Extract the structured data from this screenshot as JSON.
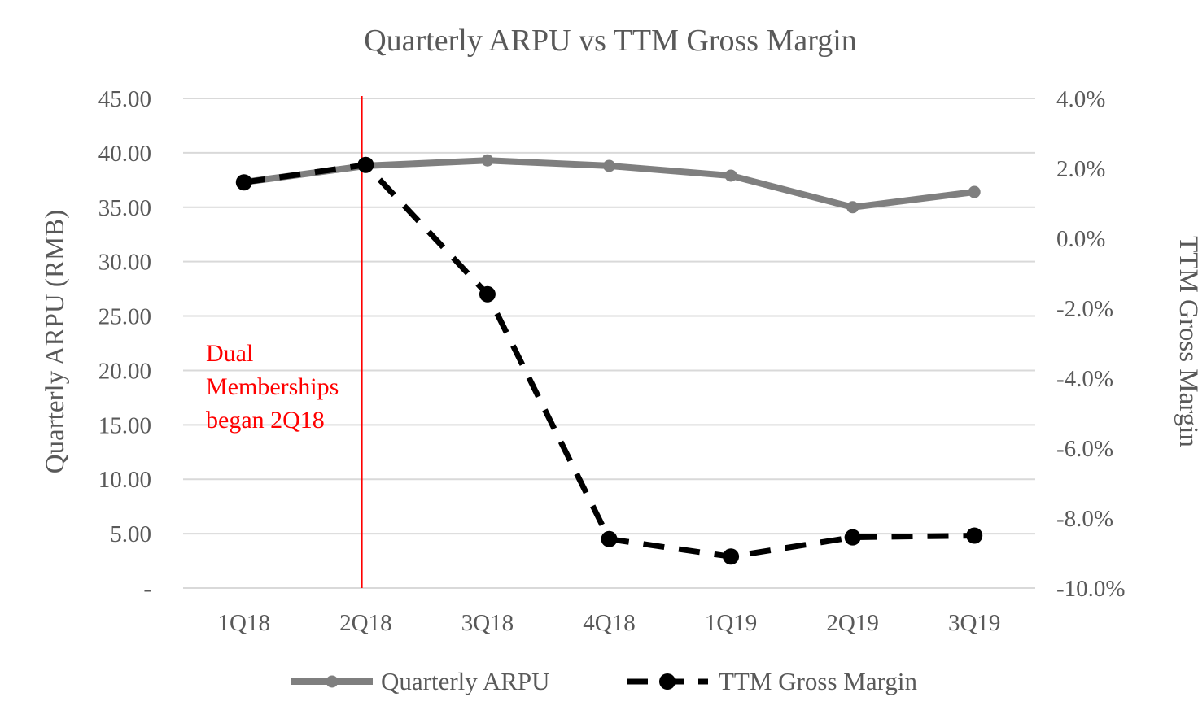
{
  "chart_data": {
    "type": "line",
    "title": "Quarterly ARPU vs TTM Gross Margin",
    "categories": [
      "1Q18",
      "2Q18",
      "3Q18",
      "4Q18",
      "1Q19",
      "2Q19",
      "3Q19"
    ],
    "y_left": {
      "label": "Quarterly ARPU (RMB)",
      "range": [
        0,
        45
      ],
      "tick_labels": [
        "-",
        "5.00",
        "10.00",
        "15.00",
        "20.00",
        "25.00",
        "30.00",
        "35.00",
        "40.00",
        "45.00"
      ]
    },
    "y_right": {
      "label": "TTM Gross Margin",
      "range": [
        -10,
        4
      ],
      "unit": "%",
      "tick_labels": [
        "-10.0%",
        "-8.0%",
        "-6.0%",
        "-4.0%",
        "-2.0%",
        "0.0%",
        "2.0%",
        "4.0%"
      ]
    },
    "series": [
      {
        "name": "Quarterly ARPU",
        "axis": "left",
        "style": "solid",
        "color": "#7f7f7f",
        "values": [
          37.3,
          38.8,
          39.3,
          38.8,
          37.9,
          35.0,
          36.4
        ]
      },
      {
        "name": "TTM Gross Margin",
        "axis": "right",
        "style": "dashed",
        "color": "#000000",
        "values": [
          1.6,
          2.1,
          -1.6,
          -8.6,
          -9.1,
          -8.55,
          -8.5
        ]
      }
    ],
    "annotation": {
      "category": "2Q18",
      "color": "#ff0000",
      "lines": [
        "Dual",
        "Memberships",
        "began 2Q18"
      ]
    },
    "grid": true,
    "legend": "bottom"
  }
}
